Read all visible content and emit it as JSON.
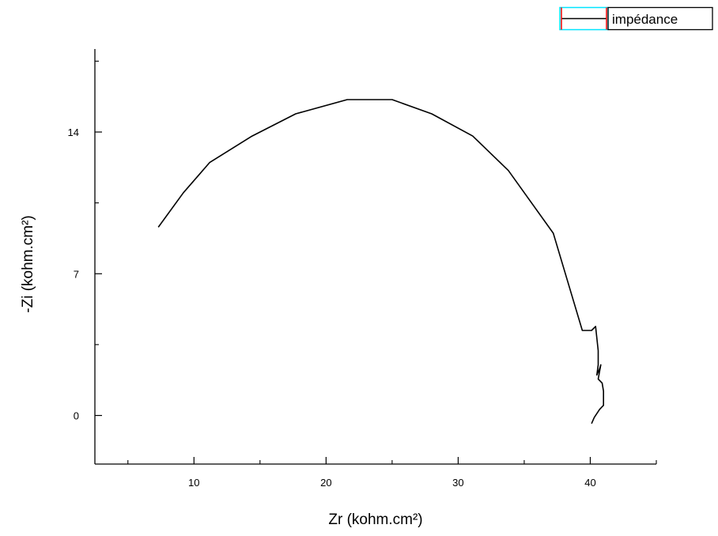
{
  "chart_data": {
    "type": "line",
    "title": "",
    "xlabel": "Zr (kohm.cm²)",
    "ylabel": "-Zi (kohm.cm²)",
    "xlim": [
      2.5,
      45
    ],
    "ylim": [
      -2.4,
      18.1
    ],
    "x_ticks": [
      10,
      20,
      30,
      40
    ],
    "y_ticks": [
      0,
      7,
      14
    ],
    "x_minor_ticks": [
      5,
      15,
      25,
      35,
      45
    ],
    "y_minor_ticks": [
      3.5,
      10.5,
      17.5
    ],
    "grid": false,
    "legend": "top-right",
    "colors": {
      "line": "#000000",
      "axis": "#000000",
      "legend_frame_accent": "#00e5ff",
      "legend_marker": "#ff0000"
    },
    "series": [
      {
        "name": "impédance",
        "x": [
          7.3,
          9.2,
          11.2,
          14.4,
          17.7,
          21.6,
          25.0,
          28.0,
          31.1,
          33.8,
          37.2,
          39.4,
          40.1,
          40.4,
          40.6,
          40.6,
          40.5,
          40.7,
          40.8,
          40.6,
          40.9,
          41.0,
          41.0,
          40.7,
          40.3,
          40.1
        ],
        "y": [
          9.3,
          11.0,
          12.5,
          13.8,
          14.9,
          15.6,
          15.6,
          14.9,
          13.8,
          12.1,
          9.0,
          4.2,
          4.2,
          4.4,
          3.2,
          2.5,
          2.0,
          2.3,
          2.5,
          1.8,
          1.6,
          1.2,
          0.5,
          0.3,
          -0.1,
          -0.4
        ]
      }
    ]
  }
}
